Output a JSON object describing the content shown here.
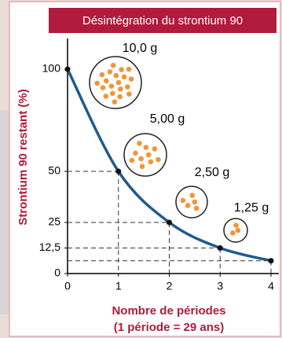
{
  "chart_data": {
    "type": "line",
    "title": "Désintégration du strontium 90",
    "y_label": "Strontium 90 restant (%)",
    "x_label": [
      "Nombre de périodes",
      "(1 période = 29 ans)"
    ],
    "x": [
      0,
      1,
      2,
      3,
      4
    ],
    "series": [
      {
        "color": "#1f5a8e",
        "values": [
          100,
          50,
          25,
          12.5,
          6.25
        ]
      }
    ],
    "xlim": [
      0,
      4
    ],
    "ylim": [
      0,
      115
    ],
    "xticks": [
      0,
      1,
      2,
      3,
      4
    ],
    "yticks": [
      0,
      {
        "value": 12.5,
        "label": "12,5"
      },
      25,
      50,
      100
    ],
    "annotations": [
      "10,0 g",
      "5,00 g",
      "2,50 g",
      "1,25 g"
    ]
  }
}
